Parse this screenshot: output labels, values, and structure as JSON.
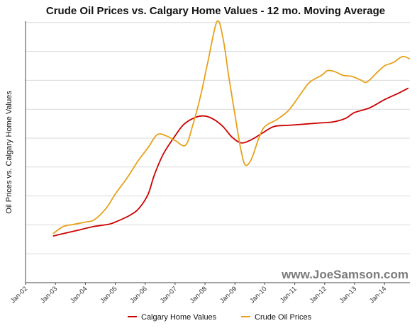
{
  "chart_data": {
    "type": "line",
    "title": "Crude Oil Prices vs. Calgary Home Values - 12 mo. Moving Average",
    "ylabel": "Oil Prices vs. Calgary Home Values",
    "xlabel": "",
    "x_tick_labels": [
      "Jan-02",
      "Jan-03",
      "Jan-04",
      "Jan-05",
      "Jan-06",
      "Jan-07",
      "Jan-08",
      "Jan-09",
      "Jan-10",
      "Jan-11",
      "Jan-12",
      "Jan-13",
      "Jan-14"
    ],
    "y_range": [
      0,
      10
    ],
    "y_grid_lines": 9,
    "grid": true,
    "legend_position": "bottom",
    "watermark": "www.JoeSamson.com",
    "series": [
      {
        "name": "Calgary Home Values",
        "color": "#cc0000",
        "points": [
          [
            2002.92,
            2.0
          ],
          [
            2003.25,
            2.1
          ],
          [
            2003.75,
            2.25
          ],
          [
            2004.25,
            2.4
          ],
          [
            2004.75,
            2.5
          ],
          [
            2005.0,
            2.6
          ],
          [
            2005.5,
            2.9
          ],
          [
            2005.8,
            3.2
          ],
          [
            2006.1,
            3.8
          ],
          [
            2006.3,
            4.6
          ],
          [
            2006.6,
            5.5
          ],
          [
            2007.0,
            6.3
          ],
          [
            2007.3,
            6.8
          ],
          [
            2007.7,
            7.1
          ],
          [
            2008.0,
            7.15
          ],
          [
            2008.3,
            7.0
          ],
          [
            2008.6,
            6.7
          ],
          [
            2008.9,
            6.25
          ],
          [
            2009.2,
            6.0
          ],
          [
            2009.5,
            6.1
          ],
          [
            2009.9,
            6.4
          ],
          [
            2010.3,
            6.7
          ],
          [
            2010.8,
            6.75
          ],
          [
            2011.3,
            6.8
          ],
          [
            2011.8,
            6.85
          ],
          [
            2012.3,
            6.9
          ],
          [
            2012.7,
            7.05
          ],
          [
            2013.0,
            7.3
          ],
          [
            2013.5,
            7.5
          ],
          [
            2014.0,
            7.85
          ],
          [
            2014.5,
            8.15
          ],
          [
            2014.8,
            8.35
          ]
        ]
      },
      {
        "name": "Crude Oil Prices",
        "color": "#e8a11a",
        "points": [
          [
            2002.92,
            2.1
          ],
          [
            2003.25,
            2.4
          ],
          [
            2003.6,
            2.5
          ],
          [
            2004.0,
            2.6
          ],
          [
            2004.3,
            2.7
          ],
          [
            2004.7,
            3.2
          ],
          [
            2005.0,
            3.8
          ],
          [
            2005.4,
            4.5
          ],
          [
            2005.75,
            5.2
          ],
          [
            2006.1,
            5.8
          ],
          [
            2006.4,
            6.35
          ],
          [
            2006.7,
            6.3
          ],
          [
            2007.0,
            6.1
          ],
          [
            2007.35,
            5.9
          ],
          [
            2007.6,
            6.8
          ],
          [
            2007.85,
            8.0
          ],
          [
            2008.1,
            9.5
          ],
          [
            2008.4,
            11.2
          ],
          [
            2008.6,
            10.5
          ],
          [
            2008.8,
            8.8
          ],
          [
            2009.0,
            7.2
          ],
          [
            2009.2,
            5.7
          ],
          [
            2009.35,
            5.05
          ],
          [
            2009.55,
            5.3
          ],
          [
            2009.8,
            6.2
          ],
          [
            2010.0,
            6.7
          ],
          [
            2010.4,
            7.0
          ],
          [
            2010.8,
            7.4
          ],
          [
            2011.2,
            8.1
          ],
          [
            2011.5,
            8.6
          ],
          [
            2011.9,
            8.9
          ],
          [
            2012.1,
            9.1
          ],
          [
            2012.35,
            9.05
          ],
          [
            2012.6,
            8.9
          ],
          [
            2012.9,
            8.85
          ],
          [
            2013.2,
            8.7
          ],
          [
            2013.4,
            8.6
          ],
          [
            2013.7,
            8.95
          ],
          [
            2014.0,
            9.3
          ],
          [
            2014.3,
            9.45
          ],
          [
            2014.6,
            9.7
          ],
          [
            2014.85,
            9.6
          ]
        ]
      }
    ]
  }
}
